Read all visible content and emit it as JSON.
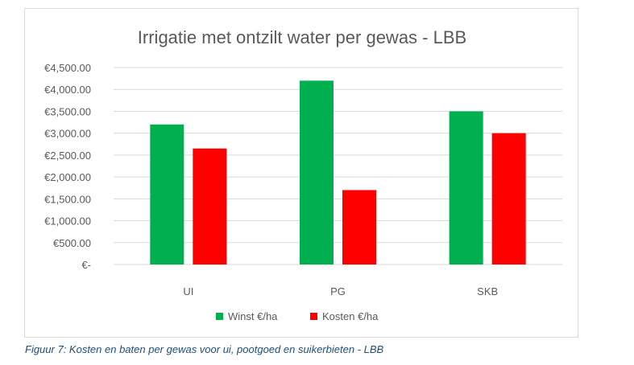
{
  "chart_data": {
    "type": "bar",
    "title": "Irrigatie met ontzilt water per gewas - LBB",
    "categories": [
      "UI",
      "PG",
      "SKB"
    ],
    "series": [
      {
        "name": "Winst €/ha",
        "color": "#00b050",
        "values": [
          3200,
          4200,
          3500
        ]
      },
      {
        "name": "Kosten €/ha",
        "color": "#ff0000",
        "values": [
          2650,
          1700,
          3000
        ]
      }
    ],
    "yticks": [
      "€-",
      "€500.00",
      "€1,000.00",
      "€1,500.00",
      "€2,000.00",
      "€2,500.00",
      "€3,000.00",
      "€3,500.00",
      "€4,000.00",
      "€4,500.00"
    ],
    "ylim": [
      0,
      4500
    ],
    "ystep": 500,
    "grid": true,
    "legend_position": "bottom"
  },
  "caption": "Figuur 7: Kosten en baten per gewas voor ui, pootgoed en suikerbieten - LBB"
}
